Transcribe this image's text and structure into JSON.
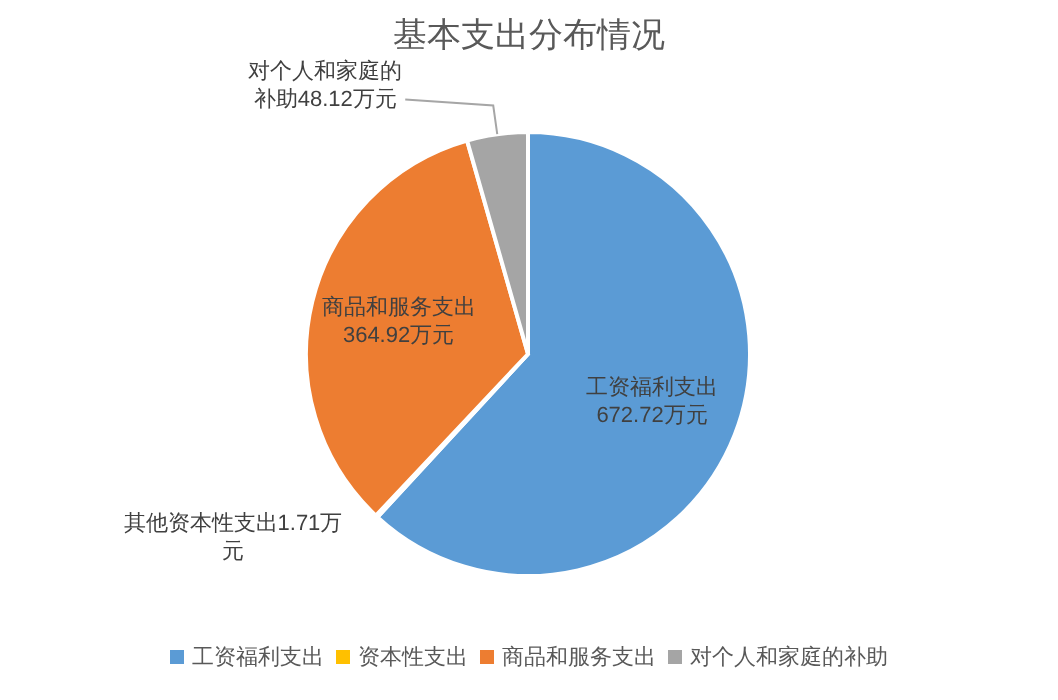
{
  "chart_data": {
    "type": "pie",
    "title": "基本支出分布情况",
    "categories": [
      "工资福利支出",
      "资本性支出",
      "商品和服务支出",
      "对个人和家庭的补助"
    ],
    "values": [
      672.72,
      1.71,
      364.92,
      48.12
    ],
    "colors": [
      "#5b9bd5",
      "#ffc000",
      "#ed7d31",
      "#a5a5a5"
    ],
    "value_labels": [
      "工资福利支出672.72万元",
      "其他资本性支出1.71万元",
      "商品和服务支出364.92万元",
      "对个人和家庭的补助48.12万元"
    ],
    "legend": "bottom"
  }
}
